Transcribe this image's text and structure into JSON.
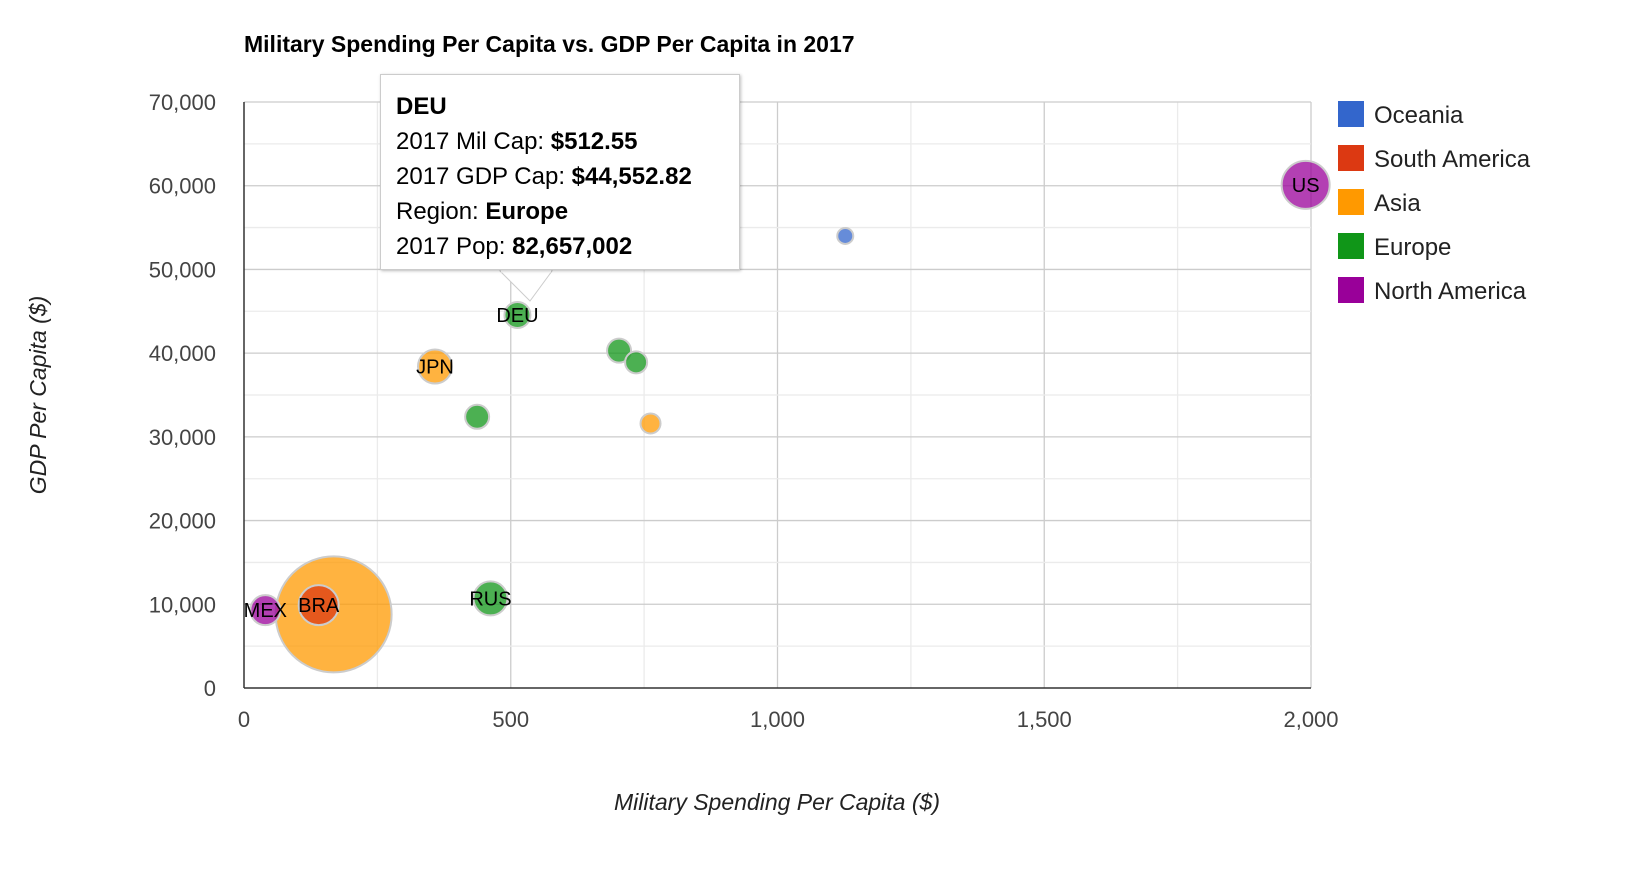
{
  "chart_data": {
    "type": "bubble",
    "title": "Military Spending Per Capita vs. GDP Per Capita in 2017",
    "xlabel": "Military Spending Per Capita ($)",
    "ylabel": "GDP Per Capita ($)",
    "xlim": [
      0,
      2000
    ],
    "ylim": [
      0,
      70000
    ],
    "x_ticks": [
      "0",
      "500",
      "1,000",
      "1,500",
      "2,000"
    ],
    "y_ticks": [
      "0",
      "10,000",
      "20,000",
      "30,000",
      "40,000",
      "50,000",
      "60,000",
      "70,000"
    ],
    "grid": true,
    "legend_position": "right",
    "legend": [
      {
        "name": "Oceania",
        "color": "#3366cc"
      },
      {
        "name": "South America",
        "color": "#dc3912"
      },
      {
        "name": "Asia",
        "color": "#ff9900"
      },
      {
        "name": "Europe",
        "color": "#109618"
      },
      {
        "name": "North America",
        "color": "#990099"
      }
    ],
    "points": [
      {
        "label": "",
        "region": "Asia",
        "x": 168,
        "y": 8800,
        "r": 58
      },
      {
        "label": "BRA",
        "region": "South America",
        "x": 140,
        "y": 9900,
        "r": 20
      },
      {
        "label": "MEX",
        "region": "North America",
        "x": 40,
        "y": 9300,
        "r": 15
      },
      {
        "label": "RUS",
        "region": "Europe",
        "x": 462,
        "y": 10700,
        "r": 17
      },
      {
        "label": "",
        "region": "Europe",
        "x": 437,
        "y": 32400,
        "r": 12
      },
      {
        "label": "JPN",
        "region": "Asia",
        "x": 358,
        "y": 38400,
        "r": 17
      },
      {
        "label": "DEU",
        "region": "Europe",
        "x": 512.55,
        "y": 44552.82,
        "r": 13
      },
      {
        "label": "",
        "region": "Europe",
        "x": 703,
        "y": 40300,
        "r": 12
      },
      {
        "label": "",
        "region": "Europe",
        "x": 735,
        "y": 38900,
        "r": 11
      },
      {
        "label": "",
        "region": "Asia",
        "x": 762,
        "y": 31600,
        "r": 10
      },
      {
        "label": "",
        "region": "Oceania",
        "x": 1127,
        "y": 54000,
        "r": 8
      },
      {
        "label": "US",
        "region": "North America",
        "x": 1990,
        "y": 60100,
        "r": 24
      }
    ],
    "tooltip": {
      "title": "DEU",
      "rows": [
        {
          "label": "2017 Mil Cap: ",
          "value": "$512.55"
        },
        {
          "label": "2017 GDP Cap: ",
          "value": "$44,552.82"
        },
        {
          "label": "Region: ",
          "value": "Europe"
        },
        {
          "label": "2017 Pop: ",
          "value": "82,657,002"
        }
      ]
    }
  }
}
